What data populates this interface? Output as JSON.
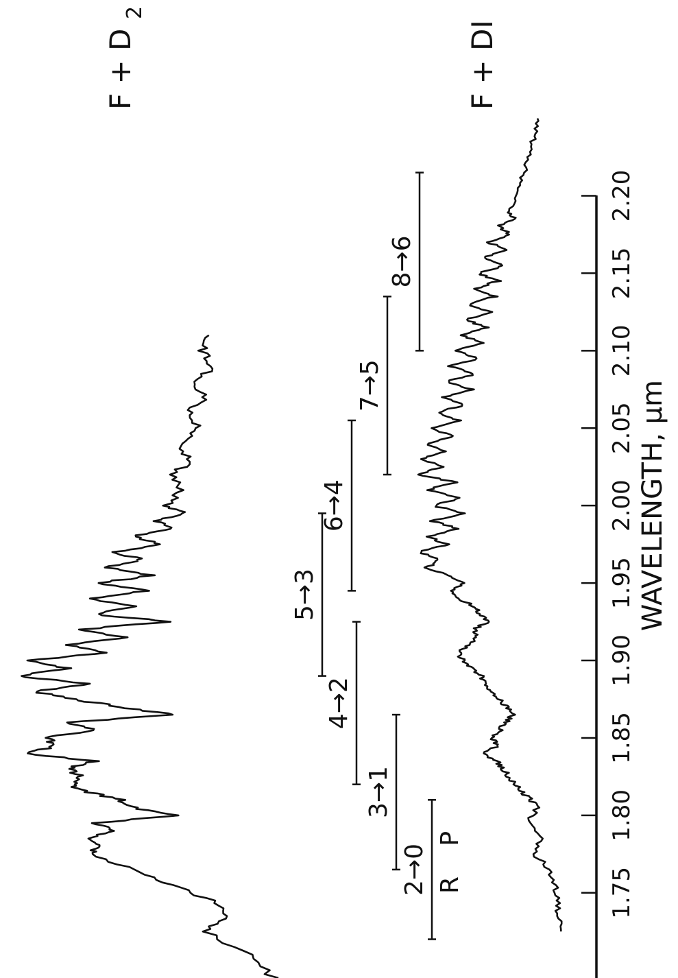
{
  "chart_data": {
    "type": "line",
    "orientation": "rotated-90",
    "title": "",
    "xlabel": "WAVELENGTH, μm",
    "ylabel": "",
    "xlim": [
      1.695,
      2.26
    ],
    "ticks": [
      "1.75",
      "1.80",
      "1.85",
      "1.90",
      "1.95",
      "2.00",
      "2.05",
      "2.10",
      "2.15",
      "2.20"
    ],
    "tick_values": [
      1.75,
      1.8,
      1.85,
      1.9,
      1.95,
      2.0,
      2.05,
      2.1,
      2.15,
      2.2
    ],
    "grid": false,
    "legend": "none",
    "series": [
      {
        "name": "F + D2",
        "label_main": "F + D",
        "label_sub": "2",
        "x": [
          1.695,
          1.71,
          1.725,
          1.735,
          1.745,
          1.755,
          1.765,
          1.775,
          1.78,
          1.785,
          1.79,
          1.795,
          1.8,
          1.805,
          1.81,
          1.815,
          1.82,
          1.825,
          1.83,
          1.835,
          1.84,
          1.845,
          1.85,
          1.855,
          1.86,
          1.865,
          1.87,
          1.875,
          1.88,
          1.885,
          1.89,
          1.895,
          1.9,
          1.905,
          1.91,
          1.915,
          1.92,
          1.925,
          1.93,
          1.935,
          1.94,
          1.945,
          1.95,
          1.955,
          1.96,
          1.965,
          1.97,
          1.975,
          1.98,
          1.985,
          1.99,
          1.995,
          2.0,
          2.01,
          2.02,
          2.03,
          2.04,
          2.05,
          2.06,
          2.07,
          2.08,
          2.09,
          2.1,
          2.11
        ],
        "y": [
          0.03,
          0.12,
          0.28,
          0.2,
          0.26,
          0.4,
          0.55,
          0.72,
          0.68,
          0.74,
          0.63,
          0.7,
          0.4,
          0.55,
          0.6,
          0.72,
          0.79,
          0.74,
          0.8,
          0.7,
          0.95,
          0.84,
          0.88,
          0.7,
          0.8,
          0.4,
          0.6,
          0.78,
          0.92,
          0.72,
          0.98,
          0.8,
          0.95,
          0.65,
          0.8,
          0.58,
          0.75,
          0.42,
          0.7,
          0.55,
          0.72,
          0.5,
          0.68,
          0.48,
          0.65,
          0.52,
          0.62,
          0.44,
          0.55,
          0.4,
          0.47,
          0.36,
          0.43,
          0.37,
          0.4,
          0.34,
          0.38,
          0.31,
          0.35,
          0.28,
          0.33,
          0.25,
          0.3,
          0.27
        ]
      },
      {
        "name": "F + DI",
        "label_main": "F + DI",
        "x": [
          1.725,
          1.735,
          1.745,
          1.755,
          1.765,
          1.775,
          1.785,
          1.795,
          1.805,
          1.81,
          1.815,
          1.82,
          1.825,
          1.83,
          1.835,
          1.84,
          1.845,
          1.85,
          1.855,
          1.86,
          1.865,
          1.87,
          1.875,
          1.88,
          1.885,
          1.89,
          1.895,
          1.9,
          1.905,
          1.91,
          1.915,
          1.92,
          1.925,
          1.93,
          1.935,
          1.94,
          1.945,
          1.95,
          1.955,
          1.96,
          1.965,
          1.97,
          1.975,
          1.98,
          1.985,
          1.99,
          1.995,
          2.0,
          2.005,
          2.01,
          2.015,
          2.02,
          2.025,
          2.03,
          2.035,
          2.04,
          2.045,
          2.05,
          2.055,
          2.06,
          2.065,
          2.07,
          2.075,
          2.08,
          2.085,
          2.09,
          2.095,
          2.1,
          2.105,
          2.11,
          2.115,
          2.12,
          2.125,
          2.13,
          2.135,
          2.14,
          2.145,
          2.15,
          2.155,
          2.16,
          2.165,
          2.17,
          2.175,
          2.18,
          2.185,
          2.19,
          2.2,
          2.21,
          2.22,
          2.23,
          2.24,
          2.25
        ],
        "y": [
          0.05,
          0.07,
          0.06,
          0.09,
          0.12,
          0.22,
          0.18,
          0.26,
          0.2,
          0.24,
          0.3,
          0.34,
          0.38,
          0.42,
          0.46,
          0.55,
          0.45,
          0.49,
          0.44,
          0.4,
          0.36,
          0.39,
          0.45,
          0.49,
          0.52,
          0.56,
          0.62,
          0.67,
          0.7,
          0.64,
          0.58,
          0.6,
          0.52,
          0.56,
          0.61,
          0.69,
          0.74,
          0.66,
          0.78,
          0.9,
          0.82,
          0.95,
          0.77,
          0.9,
          0.7,
          0.87,
          0.66,
          0.86,
          0.68,
          0.9,
          0.72,
          0.95,
          0.8,
          0.94,
          0.78,
          0.9,
          0.73,
          0.88,
          0.7,
          0.84,
          0.66,
          0.8,
          0.62,
          0.78,
          0.6,
          0.75,
          0.58,
          0.72,
          0.55,
          0.68,
          0.52,
          0.66,
          0.5,
          0.63,
          0.47,
          0.6,
          0.45,
          0.57,
          0.42,
          0.54,
          0.4,
          0.51,
          0.37,
          0.45,
          0.34,
          0.4,
          0.32,
          0.3,
          0.27,
          0.25,
          0.22,
          0.2
        ]
      }
    ],
    "band_markers": [
      {
        "label": "2→0",
        "x_start": 1.72,
        "x_end": 1.81
      },
      {
        "label": "3→1",
        "x_start": 1.765,
        "x_end": 1.865
      },
      {
        "label": "4→2",
        "x_start": 1.82,
        "x_end": 1.925
      },
      {
        "label": "5→3",
        "x_start": 1.89,
        "x_end": 1.995
      },
      {
        "label": "6→4",
        "x_start": 1.945,
        "x_end": 2.055
      },
      {
        "label": "7→5",
        "x_start": 2.02,
        "x_end": 2.135
      },
      {
        "label": "8→6",
        "x_start": 2.1,
        "x_end": 2.215
      }
    ],
    "branch_labels": [
      "R",
      "P"
    ]
  }
}
